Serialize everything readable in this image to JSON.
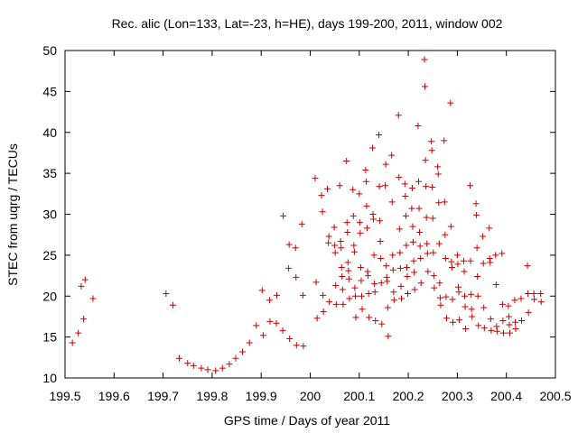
{
  "chart_data": {
    "type": "scatter",
    "title": "Rec. alic (Lon=133, Lat=-23, h=HE), days 199-200, 2011, window 002",
    "xlabel": "GPS time / Days of year 2011",
    "ylabel": "STEC from uqrg / TECUs",
    "xlim": [
      199.5,
      200.5
    ],
    "ylim": [
      10,
      50
    ],
    "xticks": [
      199.5,
      199.6,
      199.7,
      199.8,
      199.9,
      200,
      200.1,
      200.2,
      200.3,
      200.4,
      200.5
    ],
    "xtick_labels": [
      "199.5",
      "199.6",
      "199.7",
      "199.8",
      "199.9",
      "200",
      "200.1",
      "200.2",
      "200.3",
      "200.4",
      "200.5"
    ],
    "yticks": [
      10,
      15,
      20,
      25,
      30,
      35,
      40,
      45,
      50
    ],
    "ytick_labels": [
      "10",
      "15",
      "20",
      "25",
      "30",
      "35",
      "40",
      "45",
      "50"
    ],
    "grid": false,
    "marker": "+",
    "marker_color": "#cc0000",
    "series": [
      {
        "name": "STEC",
        "points": [
          [
            199.515,
            14.3
          ],
          [
            199.527,
            15.5
          ],
          [
            199.533,
            21.2
          ],
          [
            199.538,
            17.2
          ],
          [
            199.541,
            22.0
          ],
          [
            199.557,
            19.7
          ],
          [
            199.706,
            20.3
          ],
          [
            199.72,
            18.9
          ],
          [
            199.733,
            12.4
          ],
          [
            199.75,
            11.8
          ],
          [
            199.762,
            11.5
          ],
          [
            199.778,
            11.2
          ],
          [
            199.791,
            11.0
          ],
          [
            199.807,
            10.9
          ],
          [
            199.821,
            11.2
          ],
          [
            199.835,
            11.7
          ],
          [
            199.848,
            12.4
          ],
          [
            199.862,
            13.2
          ],
          [
            199.876,
            14.3
          ],
          [
            199.89,
            16.4
          ],
          [
            199.904,
            15.2
          ],
          [
            199.902,
            20.7
          ],
          [
            199.917,
            19.5
          ],
          [
            199.918,
            16.9
          ],
          [
            199.931,
            16.7
          ],
          [
            199.932,
            20.1
          ],
          [
            199.945,
            29.8
          ],
          [
            199.944,
            15.8
          ],
          [
            199.956,
            23.4
          ],
          [
            199.957,
            26.3
          ],
          [
            199.958,
            14.8
          ],
          [
            199.97,
            25.9
          ],
          [
            199.971,
            22.3
          ],
          [
            199.972,
            14.0
          ],
          [
            199.983,
            28.8
          ],
          [
            199.985,
            20.1
          ],
          [
            199.986,
            13.9
          ],
          [
            200.01,
            34.4
          ],
          [
            200.012,
            21.7
          ],
          [
            200.014,
            17.3
          ],
          [
            200.023,
            32.3
          ],
          [
            200.025,
            30.3
          ],
          [
            200.026,
            20.1
          ],
          [
            200.027,
            18.1
          ],
          [
            200.035,
            33.1
          ],
          [
            200.037,
            26.5
          ],
          [
            200.038,
            27.3
          ],
          [
            200.039,
            19.3
          ],
          [
            200.049,
            28.4
          ],
          [
            200.05,
            26.2
          ],
          [
            200.051,
            25.3
          ],
          [
            200.052,
            21.3
          ],
          [
            200.053,
            19.0
          ],
          [
            200.06,
            33.5
          ],
          [
            200.062,
            26.7
          ],
          [
            200.063,
            25.9
          ],
          [
            200.064,
            23.5
          ],
          [
            200.065,
            22.4
          ],
          [
            200.066,
            20.8
          ],
          [
            200.067,
            19.0
          ],
          [
            200.074,
            36.5
          ],
          [
            200.075,
            29.0
          ],
          [
            200.076,
            27.8
          ],
          [
            200.077,
            24.1
          ],
          [
            200.078,
            23.1
          ],
          [
            200.079,
            22.1
          ],
          [
            200.08,
            19.7
          ],
          [
            200.087,
            33.0
          ],
          [
            200.088,
            29.8
          ],
          [
            200.089,
            26.2
          ],
          [
            200.09,
            25.4
          ],
          [
            200.091,
            21.0
          ],
          [
            200.092,
            20.0
          ],
          [
            200.093,
            17.4
          ],
          [
            200.1,
            32.5
          ],
          [
            200.101,
            29.0
          ],
          [
            200.102,
            27.7
          ],
          [
            200.103,
            23.5
          ],
          [
            200.104,
            21.9
          ],
          [
            200.105,
            20.0
          ],
          [
            200.106,
            18.4
          ],
          [
            200.113,
            35.4
          ],
          [
            200.114,
            34.0
          ],
          [
            200.115,
            31.0
          ],
          [
            200.116,
            28.3
          ],
          [
            200.117,
            23.0
          ],
          [
            200.118,
            22.5
          ],
          [
            200.119,
            20.3
          ],
          [
            200.12,
            17.4
          ],
          [
            200.127,
            38.1
          ],
          [
            200.128,
            30.0
          ],
          [
            200.129,
            29.4
          ],
          [
            200.13,
            25.0
          ],
          [
            200.131,
            21.5
          ],
          [
            200.132,
            20.5
          ],
          [
            200.133,
            17.0
          ],
          [
            200.14,
            39.7
          ],
          [
            200.141,
            33.4
          ],
          [
            200.142,
            29.2
          ],
          [
            200.143,
            26.7
          ],
          [
            200.144,
            24.6
          ],
          [
            200.145,
            21.6
          ],
          [
            200.146,
            16.6
          ],
          [
            200.153,
            33.5
          ],
          [
            200.154,
            36.1
          ],
          [
            200.155,
            23.7
          ],
          [
            200.156,
            22.3
          ],
          [
            200.157,
            21.8
          ],
          [
            200.158,
            18.6
          ],
          [
            200.159,
            15.1
          ],
          [
            200.166,
            37.2
          ],
          [
            200.167,
            31.5
          ],
          [
            200.168,
            25.0
          ],
          [
            200.169,
            23.2
          ],
          [
            200.17,
            20.5
          ],
          [
            200.171,
            19.5
          ],
          [
            200.18,
            42.1
          ],
          [
            200.181,
            34.5
          ],
          [
            200.182,
            28.2
          ],
          [
            200.183,
            25.3
          ],
          [
            200.184,
            23.4
          ],
          [
            200.185,
            21.2
          ],
          [
            200.186,
            19.7
          ],
          [
            200.193,
            33.7
          ],
          [
            200.194,
            32.2
          ],
          [
            200.195,
            29.8
          ],
          [
            200.196,
            26.2
          ],
          [
            200.197,
            23.5
          ],
          [
            200.198,
            22.4
          ],
          [
            200.199,
            20.3
          ],
          [
            200.207,
            30.7
          ],
          [
            200.208,
            33.2
          ],
          [
            200.209,
            28.5
          ],
          [
            200.21,
            26.6
          ],
          [
            200.211,
            24.3
          ],
          [
            200.212,
            22.9
          ],
          [
            200.213,
            20.8
          ],
          [
            200.22,
            40.8
          ],
          [
            200.221,
            34.0
          ],
          [
            200.222,
            30.7
          ],
          [
            200.223,
            27.8
          ],
          [
            200.224,
            26.1
          ],
          [
            200.225,
            24.6
          ],
          [
            200.226,
            21.6
          ],
          [
            200.233,
            48.9
          ],
          [
            200.234,
            45.6
          ],
          [
            200.235,
            36.6
          ],
          [
            200.236,
            33.4
          ],
          [
            200.237,
            29.6
          ],
          [
            200.238,
            26.4
          ],
          [
            200.239,
            25.2
          ],
          [
            200.24,
            23.0
          ],
          [
            200.247,
            38.9
          ],
          [
            200.248,
            37.8
          ],
          [
            200.249,
            33.3
          ],
          [
            200.25,
            29.5
          ],
          [
            200.251,
            25.3
          ],
          [
            200.252,
            22.5
          ],
          [
            200.253,
            21.0
          ],
          [
            200.26,
            35.8
          ],
          [
            200.261,
            34.9
          ],
          [
            200.262,
            31.4
          ],
          [
            200.263,
            26.4
          ],
          [
            200.264,
            21.6
          ],
          [
            200.265,
            19.8
          ],
          [
            200.266,
            18.9
          ],
          [
            200.273,
            39.0
          ],
          [
            200.274,
            31.5
          ],
          [
            200.275,
            27.5
          ],
          [
            200.276,
            24.6
          ],
          [
            200.277,
            19.9
          ],
          [
            200.278,
            17.3
          ],
          [
            200.286,
            43.6
          ],
          [
            200.287,
            28.5
          ],
          [
            200.288,
            24.2
          ],
          [
            200.289,
            23.5
          ],
          [
            200.29,
            19.6
          ],
          [
            200.291,
            16.8
          ],
          [
            200.3,
            25.0
          ],
          [
            200.301,
            23.9
          ],
          [
            200.302,
            21.1
          ],
          [
            200.303,
            20.5
          ],
          [
            200.304,
            17.1
          ],
          [
            200.313,
            24.3
          ],
          [
            200.314,
            23.0
          ],
          [
            200.315,
            20.0
          ],
          [
            200.316,
            18.7
          ],
          [
            200.317,
            16.0
          ],
          [
            200.326,
            33.5
          ],
          [
            200.327,
            24.3
          ],
          [
            200.328,
            20.2
          ],
          [
            200.329,
            18.4
          ],
          [
            200.33,
            17.5
          ],
          [
            200.338,
            31.3
          ],
          [
            200.339,
            29.9
          ],
          [
            200.34,
            25.9
          ],
          [
            200.341,
            22.4
          ],
          [
            200.342,
            20.0
          ],
          [
            200.343,
            16.4
          ],
          [
            200.352,
            27.3
          ],
          [
            200.353,
            24.0
          ],
          [
            200.354,
            18.6
          ],
          [
            200.355,
            16.1
          ],
          [
            200.365,
            28.3
          ],
          [
            200.366,
            24.6
          ],
          [
            200.367,
            24.1
          ],
          [
            200.368,
            17.2
          ],
          [
            200.369,
            15.8
          ],
          [
            200.378,
            25.0
          ],
          [
            200.379,
            21.4
          ],
          [
            200.38,
            16.3
          ],
          [
            200.381,
            15.7
          ],
          [
            200.391,
            25.2
          ],
          [
            200.392,
            19.0
          ],
          [
            200.393,
            17.0
          ],
          [
            200.394,
            15.5
          ],
          [
            200.404,
            18.8
          ],
          [
            200.405,
            17.5
          ],
          [
            200.406,
            16.5
          ],
          [
            200.407,
            15.5
          ],
          [
            200.417,
            19.5
          ],
          [
            200.418,
            16.8
          ],
          [
            200.419,
            16.0
          ],
          [
            200.43,
            19.7
          ],
          [
            200.431,
            17.0
          ],
          [
            200.443,
            23.7
          ],
          [
            200.444,
            20.3
          ],
          [
            200.445,
            18.0
          ],
          [
            200.456,
            20.3
          ],
          [
            200.457,
            19.6
          ],
          [
            200.47,
            20.3
          ],
          [
            200.471,
            19.3
          ]
        ]
      }
    ]
  }
}
